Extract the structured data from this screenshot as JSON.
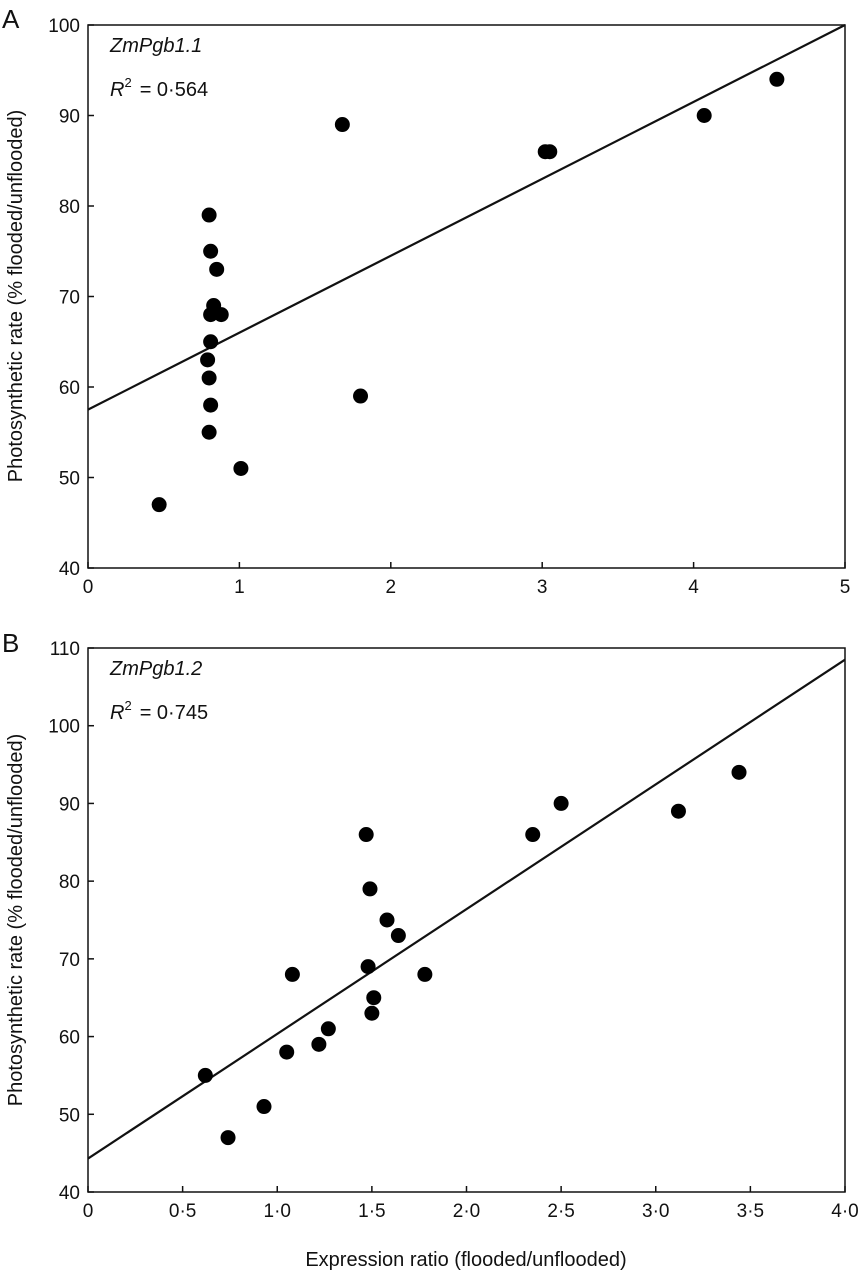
{
  "chart_data": [
    {
      "panel_label": "A",
      "type": "scatter",
      "annotation_gene": "ZmPgb1.1",
      "annotation_r2_label": "R",
      "annotation_r2_sup": "2",
      "annotation_r2_value": "= 0·564",
      "xlabel": "",
      "ylabel": "Photosynthetic rate (% flooded/unflooded)",
      "xlim": [
        0,
        5
      ],
      "ylim": [
        40,
        100
      ],
      "xticks": [
        "0",
        "1",
        "2",
        "3",
        "4",
        "5"
      ],
      "xtick_values": [
        0,
        1,
        2,
        3,
        4,
        5
      ],
      "yticks": [
        "40",
        "50",
        "60",
        "70",
        "80",
        "90",
        "100"
      ],
      "ytick_values": [
        40,
        50,
        60,
        70,
        80,
        90,
        100
      ],
      "points": [
        [
          0.47,
          47
        ],
        [
          0.8,
          79
        ],
        [
          0.81,
          75
        ],
        [
          0.85,
          73
        ],
        [
          0.83,
          69
        ],
        [
          0.81,
          68
        ],
        [
          0.88,
          68
        ],
        [
          0.81,
          65
        ],
        [
          0.79,
          63
        ],
        [
          0.8,
          61
        ],
        [
          0.81,
          58
        ],
        [
          0.8,
          55
        ],
        [
          1.01,
          51
        ],
        [
          1.68,
          89
        ],
        [
          1.8,
          59
        ],
        [
          3.02,
          86
        ],
        [
          3.05,
          86
        ],
        [
          4.07,
          90
        ],
        [
          4.55,
          94
        ]
      ],
      "fit_line": [
        [
          0,
          57.5
        ],
        [
          5,
          100
        ]
      ],
      "grid": false
    },
    {
      "panel_label": "B",
      "type": "scatter",
      "annotation_gene": "ZmPgb1.2",
      "annotation_r2_label": "R",
      "annotation_r2_sup": "2",
      "annotation_r2_value": "= 0·745",
      "xlabel": "Expression ratio (flooded/unflooded)",
      "ylabel": "Photosynthetic rate (% flooded/unflooded)",
      "xlim": [
        0,
        4
      ],
      "ylim": [
        40,
        110
      ],
      "xticks": [
        "0",
        "0·5",
        "1·0",
        "1·5",
        "2·0",
        "2·5",
        "3·0",
        "3·5",
        "4·0"
      ],
      "xtick_values": [
        0,
        0.5,
        1,
        1.5,
        2,
        2.5,
        3,
        3.5,
        4
      ],
      "yticks": [
        "40",
        "50",
        "60",
        "70",
        "80",
        "90",
        "100",
        "110"
      ],
      "ytick_values": [
        40,
        50,
        60,
        70,
        80,
        90,
        100,
        110
      ],
      "points": [
        [
          0.62,
          55
        ],
        [
          0.74,
          47
        ],
        [
          0.93,
          51
        ],
        [
          1.05,
          58
        ],
        [
          1.08,
          68
        ],
        [
          1.22,
          59
        ],
        [
          1.27,
          61
        ],
        [
          1.47,
          86
        ],
        [
          1.48,
          69
        ],
        [
          1.49,
          79
        ],
        [
          1.5,
          63
        ],
        [
          1.51,
          65
        ],
        [
          1.58,
          75
        ],
        [
          1.64,
          73
        ],
        [
          1.78,
          68
        ],
        [
          2.35,
          86
        ],
        [
          2.5,
          90
        ],
        [
          3.12,
          89
        ],
        [
          3.44,
          94
        ]
      ],
      "fit_line": [
        [
          0,
          44.3
        ],
        [
          4,
          108.5
        ]
      ],
      "grid": false
    }
  ]
}
